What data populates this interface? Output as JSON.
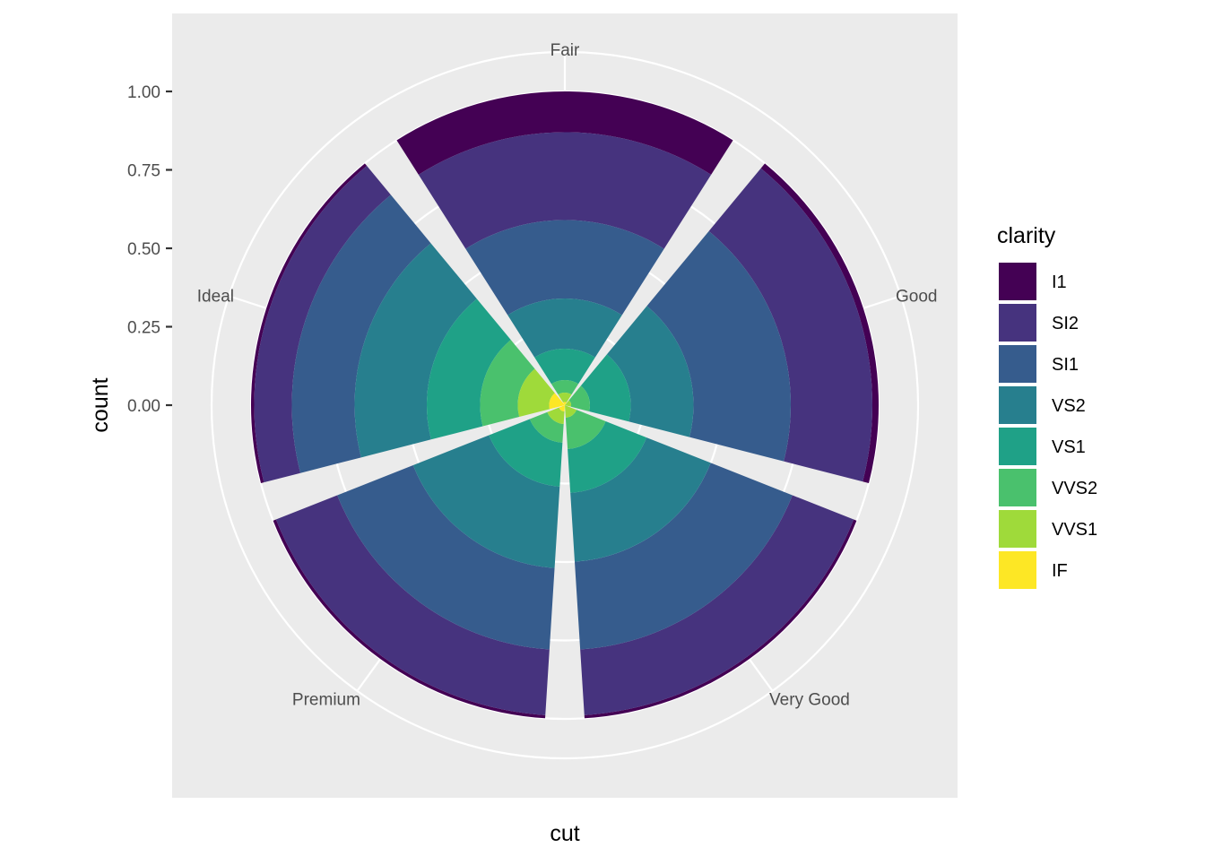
{
  "chart_data": {
    "type": "bar",
    "subtype": "polar-stacked-fill",
    "xlabel": "cut",
    "ylabel": "count",
    "categories": [
      "Fair",
      "Good",
      "Very Good",
      "Premium",
      "Ideal"
    ],
    "y_ticks": [
      "0.00",
      "0.25",
      "0.50",
      "0.75",
      "1.00"
    ],
    "ylim": [
      0,
      1
    ],
    "grid": true,
    "legend": {
      "title": "clarity",
      "position": "right",
      "items": [
        {
          "label": "I1",
          "color": "#440154"
        },
        {
          "label": "SI2",
          "color": "#46337E"
        },
        {
          "label": "SI1",
          "color": "#365C8D"
        },
        {
          "label": "VS2",
          "color": "#277F8E"
        },
        {
          "label": "VS1",
          "color": "#1FA187"
        },
        {
          "label": "VVS2",
          "color": "#4AC16D"
        },
        {
          "label": "VVS1",
          "color": "#9FDA3A"
        },
        {
          "label": "IF",
          "color": "#FDE725"
        }
      ]
    },
    "series": [
      {
        "name": "I1",
        "values": [
          0.13,
          0.02,
          0.01,
          0.01,
          0.01
        ]
      },
      {
        "name": "SI2",
        "values": [
          0.28,
          0.26,
          0.21,
          0.21,
          0.12
        ]
      },
      {
        "name": "SI1",
        "values": [
          0.25,
          0.31,
          0.28,
          0.26,
          0.2
        ]
      },
      {
        "name": "VS2",
        "values": [
          0.16,
          0.2,
          0.22,
          0.26,
          0.23
        ]
      },
      {
        "name": "VS1",
        "values": [
          0.1,
          0.13,
          0.14,
          0.14,
          0.17
        ]
      },
      {
        "name": "VVS2",
        "values": [
          0.04,
          0.06,
          0.1,
          0.06,
          0.12
        ]
      },
      {
        "name": "VVS1",
        "values": [
          0.03,
          0.04,
          0.06,
          0.04,
          0.1
        ]
      },
      {
        "name": "IF",
        "values": [
          0.01,
          0.01,
          0.02,
          0.01,
          0.04
        ]
      }
    ]
  }
}
